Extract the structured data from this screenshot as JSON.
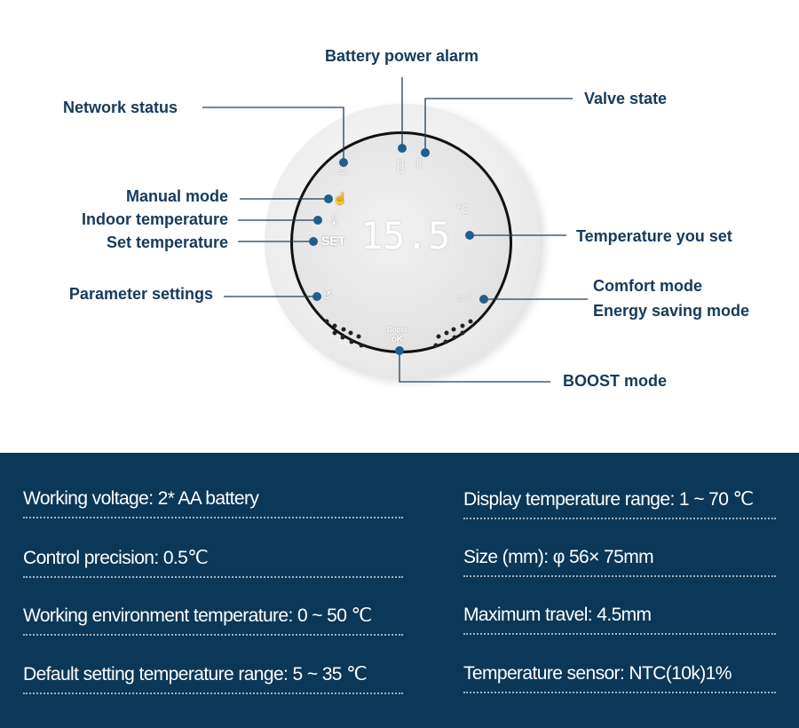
{
  "callouts": {
    "battery": "Battery power alarm",
    "network": "Network status",
    "valve": "Valve state",
    "manual": "Manual mode",
    "indoor": "Indoor temperature",
    "set_temp": "Set temperature",
    "param": "Parameter settings",
    "temp_set": "Temperature you set",
    "comfort": "Comfort mode",
    "energy": "Energy saving mode",
    "boost": "BOOST mode"
  },
  "device": {
    "display_value": "15.5",
    "set_label": "SET",
    "boost_label": "Boost",
    "ok_label": "oK",
    "unit": "℃"
  },
  "colors": {
    "accent": "#1f5f8b",
    "panel": "#0b3858",
    "label": "#163a5c"
  },
  "specs": {
    "left": [
      "Working voltage: 2* AA battery",
      "Control precision: 0.5℃",
      "Working environment temperature: 0 ~ 50 ℃",
      "Default setting temperature range: 5 ~ 35 ℃"
    ],
    "right": [
      "Display temperature range: 1 ~ 70 ℃",
      "Size (mm): φ 56× 75mm",
      "Maximum travel: 4.5mm",
      "Temperature sensor: NTC(10k)1%"
    ]
  }
}
